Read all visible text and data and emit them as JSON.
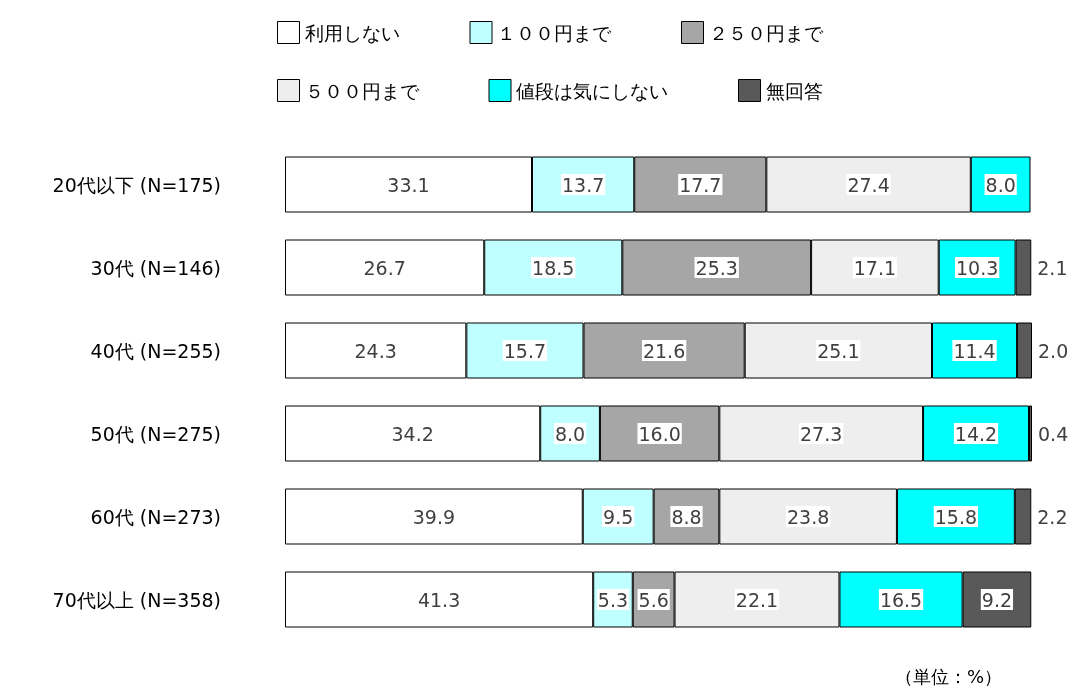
{
  "chart_data": {
    "type": "bar",
    "orientation": "horizontal",
    "stacked": true,
    "legend": "top",
    "categories": [
      "20代以下 (N=175)",
      "30代 (N=146)",
      "40代 (N=255)",
      "50代 (N=275)",
      "60代 (N=273)",
      "70代以上 (N=358)"
    ],
    "series": [
      {
        "name": "利用しない",
        "color": "#ffffff",
        "values": [
          33.1,
          26.7,
          24.3,
          34.2,
          39.9,
          41.3
        ],
        "value_labels": [
          "33.1",
          "26.7",
          "24.3",
          "34.2",
          "39.9",
          "41.3"
        ]
      },
      {
        "name": "１００円まで",
        "color": "#c0ffff",
        "values": [
          13.7,
          18.5,
          15.7,
          8.0,
          9.5,
          5.3
        ],
        "value_labels": [
          "13.7",
          "18.5",
          "15.7",
          "8.0",
          "9.5",
          "5.3"
        ]
      },
      {
        "name": "２５０円まで",
        "color": "#a6a6a6",
        "values": [
          17.7,
          25.3,
          21.6,
          16.0,
          8.8,
          5.6
        ],
        "value_labels": [
          "17.7",
          "25.3",
          "21.6",
          "16.0",
          "8.8",
          "5.6"
        ]
      },
      {
        "name": "５００円まで",
        "color": "#eeeeee",
        "values": [
          27.4,
          17.1,
          25.1,
          27.3,
          23.8,
          22.1
        ],
        "value_labels": [
          "27.4",
          "17.1",
          "25.1",
          "27.3",
          "23.8",
          "22.1"
        ]
      },
      {
        "name": "値段は気にしない",
        "color": "#00ffff",
        "values": [
          8.0,
          10.3,
          11.4,
          14.2,
          15.8,
          16.5
        ],
        "value_labels": [
          "8.0",
          "10.3",
          "11.4",
          "14.2",
          "15.8",
          "16.5"
        ]
      },
      {
        "name": "無回答",
        "color": "#595959",
        "values": [
          null,
          2.1,
          2.0,
          0.4,
          2.2,
          9.2
        ],
        "value_labels": [
          null,
          "2.1",
          "2.0",
          "0.4",
          "2.2",
          "9.2"
        ]
      }
    ],
    "annotations": [
      "（単位：%）"
    ]
  }
}
